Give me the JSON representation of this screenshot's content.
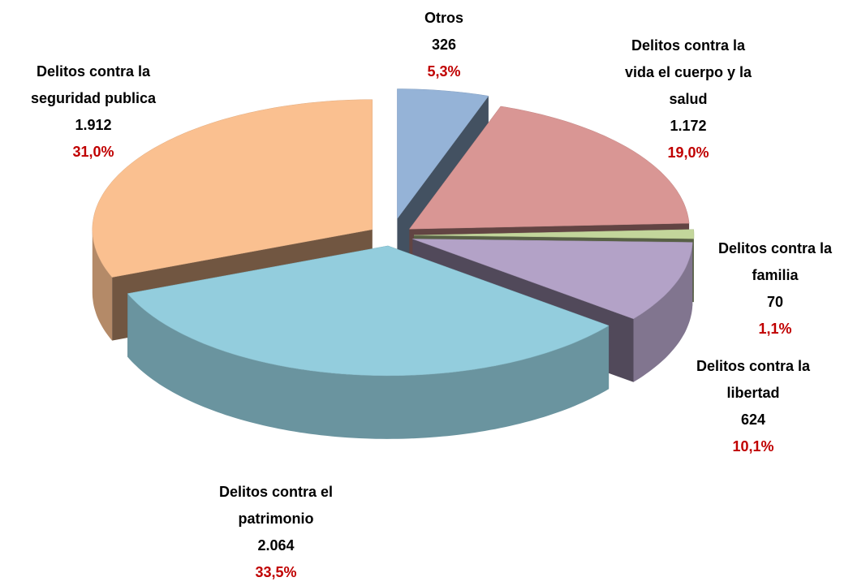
{
  "chart_data": {
    "type": "pie",
    "categories": [
      "Otros",
      "Delitos contra la vida el cuerpo y la salud",
      "Delitos contra la familia",
      "Delitos contra la libertad",
      "Delitos contra el patrimonio",
      "Delitos contra la seguridad publica"
    ],
    "values": [
      326,
      1172,
      70,
      624,
      2064,
      1912
    ],
    "value_labels": [
      "326",
      "1.172",
      "70",
      "624",
      "2.064",
      "1.912"
    ],
    "percentages": [
      5.3,
      19.0,
      1.1,
      10.1,
      33.5,
      31.0
    ],
    "percentage_labels": [
      "5,3%",
      "19,0%",
      "1,1%",
      "10,1%",
      "33,5%",
      "31,0%"
    ],
    "colors": [
      "#95b3d7",
      "#d99694",
      "#c3d69b",
      "#b3a2c7",
      "#93cddd",
      "#fac090"
    ]
  }
}
